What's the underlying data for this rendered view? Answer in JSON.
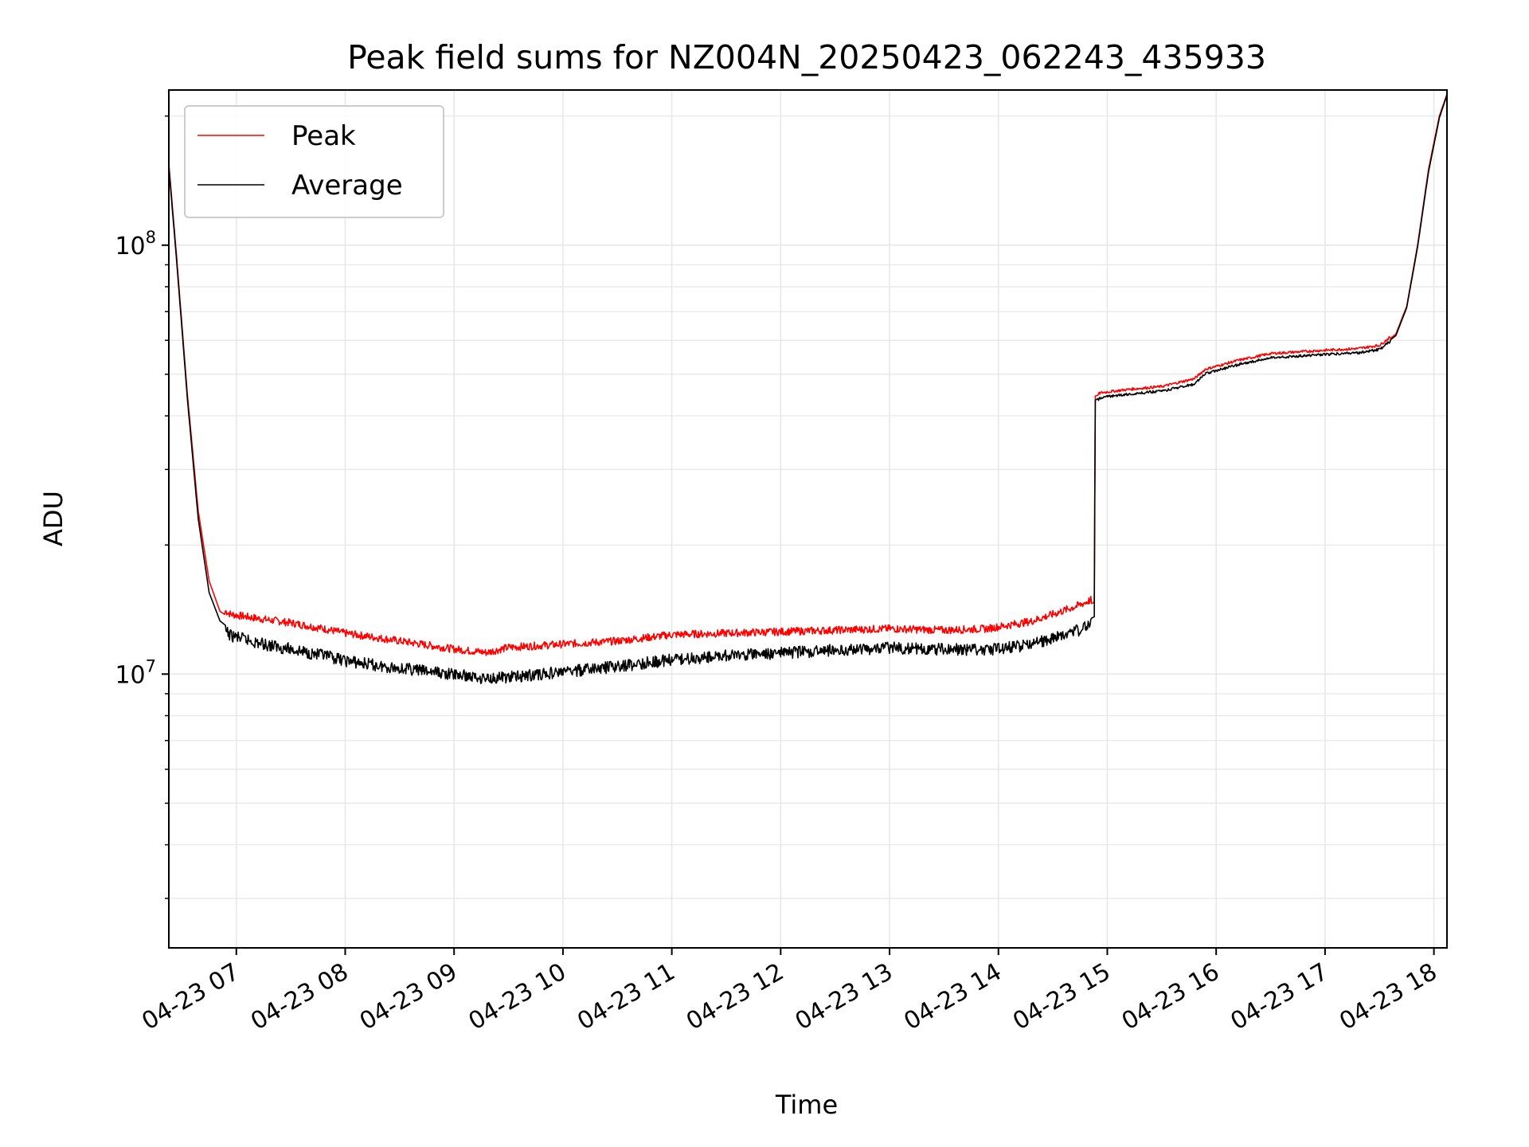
{
  "chart_data": {
    "type": "line",
    "title": "Peak field sums for NZ004N_20250423_062243_435933",
    "xlabel": "Time",
    "ylabel": "ADU",
    "yscale": "log",
    "ylim": [
      2300000,
      230000000
    ],
    "xlim_hours": [
      6.38,
      18.12
    ],
    "x_tick_hours": [
      7,
      8,
      9,
      10,
      11,
      12,
      13,
      14,
      15,
      16,
      17,
      18
    ],
    "x_tick_labels": [
      "04-23 07",
      "04-23 08",
      "04-23 09",
      "04-23 10",
      "04-23 11",
      "04-23 12",
      "04-23 13",
      "04-23 14",
      "04-23 15",
      "04-23 16",
      "04-23 17",
      "04-23 18"
    ],
    "y_major_ticks": [
      {
        "value": 10000000,
        "base": "10",
        "exp": "7"
      },
      {
        "value": 100000000,
        "base": "10",
        "exp": "8"
      }
    ],
    "grid": true,
    "legend_position": "top-left",
    "colors": {
      "peak": "#ff0000",
      "average": "#000000",
      "grid": "#e6e6e6",
      "legend_border": "#cccccc"
    },
    "series": [
      {
        "name": "Peak",
        "color": "#ff0000",
        "x": [
          6.38,
          6.45,
          6.55,
          6.65,
          6.75,
          6.85,
          6.95,
          7.2,
          7.5,
          7.8,
          8.0,
          8.3,
          8.6,
          9.0,
          9.3,
          9.5,
          10.0,
          10.5,
          11.0,
          11.5,
          12.0,
          12.5,
          13.0,
          13.5,
          13.9,
          14.3,
          14.5,
          14.75,
          14.88,
          14.89,
          14.95,
          15.2,
          15.5,
          15.8,
          15.9,
          16.2,
          16.5,
          17.0,
          17.3,
          17.5,
          17.65,
          17.75,
          17.85,
          17.95,
          18.05,
          18.12
        ],
        "y": [
          155000000,
          95000000,
          45000000,
          24000000,
          16500000,
          14000000,
          13500000,
          13200000,
          12900000,
          12500000,
          12200000,
          11900000,
          11600000,
          11200000,
          11000000,
          11300000,
          11500000,
          11700000,
          12100000,
          12200000,
          12300000,
          12400000,
          12500000,
          12400000,
          12500000,
          13000000,
          13500000,
          14200000,
          14700000,
          44500000,
          45000000,
          45800000,
          46500000,
          48500000,
          51000000,
          53500000,
          55500000,
          56500000,
          57000000,
          58000000,
          62000000,
          72000000,
          100000000,
          150000000,
          200000000,
          225000000
        ]
      },
      {
        "name": "Average",
        "color": "#000000",
        "x": [
          6.38,
          6.45,
          6.55,
          6.65,
          6.75,
          6.85,
          6.95,
          7.2,
          7.5,
          7.8,
          8.0,
          8.3,
          8.6,
          9.0,
          9.3,
          9.5,
          10.0,
          10.5,
          11.0,
          11.5,
          12.0,
          12.5,
          13.0,
          13.5,
          13.9,
          14.3,
          14.5,
          14.75,
          14.88,
          14.89,
          14.95,
          15.2,
          15.5,
          15.8,
          15.9,
          16.2,
          16.5,
          17.0,
          17.3,
          17.5,
          17.65,
          17.75,
          17.85,
          17.95,
          18.05,
          18.12
        ],
        "y": [
          152000000,
          93000000,
          44000000,
          23000000,
          15500000,
          13300000,
          12700000,
          12200000,
          11800000,
          11400000,
          11100000,
          10800000,
          10600000,
          10300000,
          10100000,
          10150000,
          10450000,
          10750000,
          11150000,
          11400000,
          11550000,
          11750000,
          11900000,
          11800000,
          11750000,
          12100000,
          12500000,
          13100000,
          13600000,
          43500000,
          44500000,
          45300000,
          46000000,
          47800000,
          50500000,
          53000000,
          55000000,
          56000000,
          56500000,
          57500000,
          61500000,
          71500000,
          99000000,
          148000000,
          198000000,
          224000000
        ]
      }
    ]
  }
}
